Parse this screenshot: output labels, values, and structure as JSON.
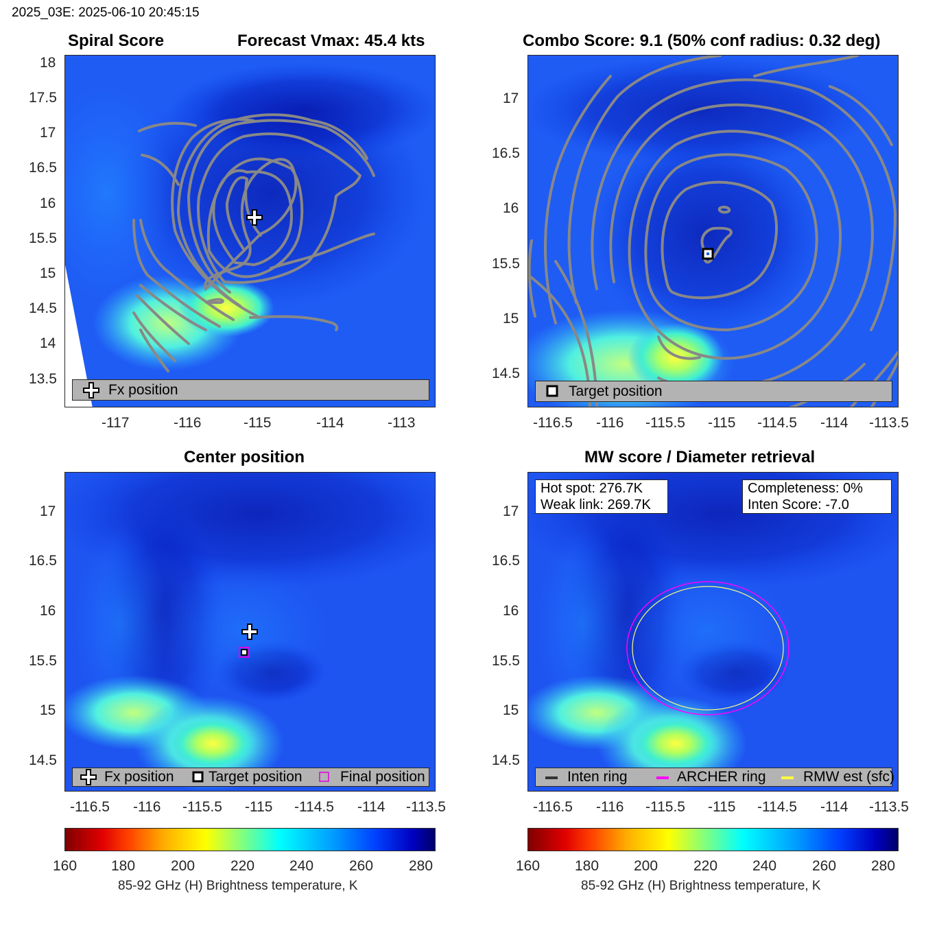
{
  "header": {
    "text": "2025_03E: 2025-06-10 20:45:15"
  },
  "panels": {
    "spiral": {
      "title_left": "Spiral Score",
      "title_right": "Forecast Vmax: 45.4 kts",
      "yticks": [
        "18",
        "17.5",
        "17",
        "16.5",
        "16",
        "15.5",
        "15",
        "14.5",
        "14",
        "13.5"
      ],
      "xticks": [
        "-117",
        "-116",
        "-115",
        "-114",
        "-113"
      ],
      "legend": "Fx position"
    },
    "combo": {
      "title": "Combo Score: 9.1  (50% conf radius: 0.32 deg)",
      "yticks": [
        "17",
        "16.5",
        "16",
        "15.5",
        "15",
        "14.5"
      ],
      "xticks": [
        "-116.5",
        "-116",
        "-115.5",
        "-115",
        "-114.5",
        "-114",
        "-113.5"
      ],
      "legend": "Target position"
    },
    "center": {
      "title": "Center position",
      "yticks": [
        "17",
        "16.5",
        "16",
        "15.5",
        "15",
        "14.5"
      ],
      "xticks": [
        "-116.5",
        "-116",
        "-115.5",
        "-115",
        "-114.5",
        "-114",
        "-113.5"
      ],
      "legend": {
        "fx": "Fx position",
        "target": "Target position",
        "final": "Final position"
      }
    },
    "mw": {
      "title": "MW score / Diameter retrieval",
      "yticks": [
        "17",
        "16.5",
        "16",
        "15.5",
        "15",
        "14.5"
      ],
      "xticks": [
        "-116.5",
        "-116",
        "-115.5",
        "-115",
        "-114.5",
        "-114",
        "-113.5"
      ],
      "info_left": {
        "hot_spot": "Hot spot: 276.7K",
        "weak_link": "Weak link: 269.7K"
      },
      "info_right": {
        "completeness": "Completeness: 0%",
        "inten_score": "Inten Score: -7.0"
      },
      "legend": {
        "inten": "Inten ring",
        "archer": "ARCHER ring",
        "rmw": "RMW est (sfc)"
      }
    }
  },
  "colorbar": {
    "ticks": [
      "160",
      "180",
      "200",
      "220",
      "240",
      "260",
      "280"
    ],
    "label": "85-92 GHz (H) Brightness temperature, K"
  },
  "chart_data": [
    {
      "type": "heatmap",
      "title": "Spiral Score",
      "subtitle": "Forecast Vmax: 45.4 kts",
      "xlim": [
        -117.75,
        -112.6
      ],
      "ylim": [
        13.1,
        18.1
      ],
      "fx_position": {
        "lon": -115.0,
        "lat": 15.78
      },
      "legend": [
        "Fx position"
      ]
    },
    {
      "type": "heatmap",
      "title": "Combo Score: 9.1  (50% conf radius: 0.32 deg)",
      "xlim": [
        -116.8,
        -113.5
      ],
      "ylim": [
        14.2,
        17.4
      ],
      "target_position": {
        "lon": -115.15,
        "lat": 15.6
      },
      "legend": [
        "Target position"
      ]
    },
    {
      "type": "heatmap",
      "title": "Center position",
      "xlim": [
        -116.8,
        -113.5
      ],
      "ylim": [
        14.2,
        17.4
      ],
      "fx_position": {
        "lon": -114.99,
        "lat": 15.8
      },
      "target_position": {
        "lon": -115.18,
        "lat": 15.6
      },
      "final_position": {
        "lon": -115.18,
        "lat": 15.6
      },
      "legend": [
        "Fx position",
        "Target position",
        "Final position"
      ]
    },
    {
      "type": "heatmap",
      "title": "MW score / Diameter retrieval",
      "xlim": [
        -116.8,
        -113.5
      ],
      "ylim": [
        14.2,
        17.4
      ],
      "ring_center": {
        "lon": -115.15,
        "lat": 15.6
      },
      "legend": [
        "Inten ring",
        "ARCHER ring",
        "RMW est (sfc)"
      ]
    }
  ]
}
